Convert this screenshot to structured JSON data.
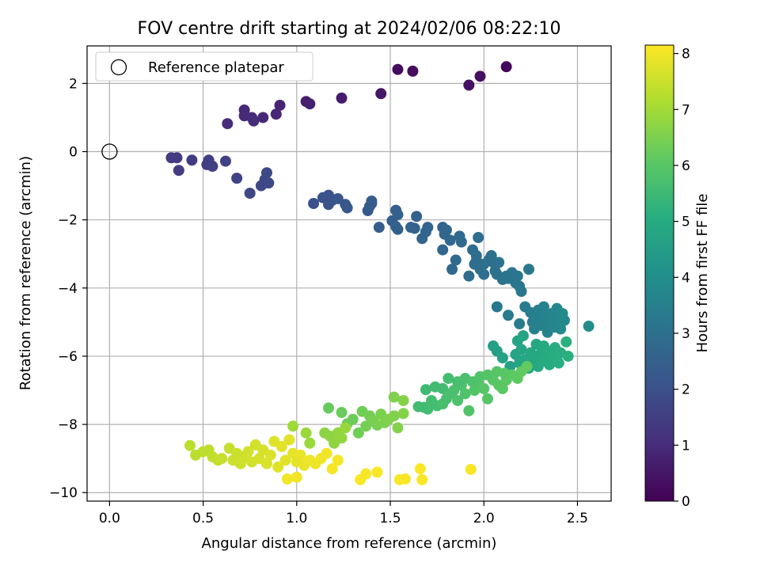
{
  "chart_data": {
    "type": "scatter",
    "title": "FOV centre drift starting at 2024/02/06 08:22:10",
    "xlabel": "Angular distance from reference (arcmin)",
    "ylabel": "Rotation from reference (arcmin)",
    "xlim": [
      -0.12,
      2.68
    ],
    "ylim": [
      -10.25,
      3.1
    ],
    "xticks": [
      0.0,
      0.5,
      1.0,
      1.5,
      2.0,
      2.5
    ],
    "xtick_labels": [
      "0.0",
      "0.5",
      "1.0",
      "1.5",
      "2.0",
      "2.5"
    ],
    "yticks": [
      2,
      0,
      -2,
      -4,
      -6,
      -8,
      -10
    ],
    "ytick_labels": [
      "2",
      "0",
      "−2",
      "−4",
      "−6",
      "−8",
      "−10"
    ],
    "grid": true,
    "legend": {
      "position": "top-left",
      "label": "Reference platepar"
    },
    "reference_point": {
      "x": 0.0,
      "y": 0.0
    },
    "colorbar": {
      "label": "Hours from first FF file",
      "min": 0,
      "max": 8.15,
      "ticks": [
        0,
        1,
        2,
        3,
        4,
        5,
        6,
        7,
        8
      ],
      "tick_labels": [
        "0",
        "1",
        "2",
        "3",
        "4",
        "5",
        "6",
        "7",
        "8"
      ],
      "colormap": "viridis"
    },
    "points": [
      [
        1.54,
        2.41,
        0.25
      ],
      [
        1.62,
        2.36,
        0.3
      ],
      [
        2.12,
        2.49,
        0.15
      ],
      [
        1.98,
        2.21,
        0.35
      ],
      [
        1.92,
        1.95,
        0.4
      ],
      [
        1.45,
        1.7,
        0.5
      ],
      [
        1.24,
        1.57,
        0.6
      ],
      [
        1.05,
        1.47,
        0.7
      ],
      [
        1.07,
        1.4,
        0.75
      ],
      [
        0.91,
        1.36,
        0.8
      ],
      [
        0.89,
        1.1,
        0.85
      ],
      [
        0.82,
        1.0,
        0.9
      ],
      [
        0.72,
        1.22,
        0.9
      ],
      [
        0.72,
        1.05,
        0.95
      ],
      [
        0.76,
        1.0,
        1.0
      ],
      [
        0.77,
        0.9,
        1.0
      ],
      [
        0.63,
        0.82,
        1.05
      ],
      [
        0.33,
        -0.18,
        1.4
      ],
      [
        0.36,
        -0.18,
        1.4
      ],
      [
        0.37,
        -0.55,
        1.45
      ],
      [
        0.44,
        -0.25,
        1.45
      ],
      [
        0.52,
        -0.38,
        1.5
      ],
      [
        0.53,
        -0.25,
        1.5
      ],
      [
        0.55,
        -0.43,
        1.55
      ],
      [
        0.62,
        -0.28,
        1.6
      ],
      [
        0.68,
        -0.78,
        1.65
      ],
      [
        0.75,
        -1.22,
        1.7
      ],
      [
        0.81,
        -1.0,
        1.75
      ],
      [
        0.83,
        -0.82,
        1.75
      ],
      [
        0.84,
        -0.62,
        1.8
      ],
      [
        0.85,
        -0.92,
        1.8
      ],
      [
        1.09,
        -1.52,
        2.0
      ],
      [
        1.14,
        -1.35,
        2.05
      ],
      [
        1.17,
        -1.28,
        2.05
      ],
      [
        1.17,
        -1.55,
        2.1
      ],
      [
        1.19,
        -1.43,
        2.1
      ],
      [
        1.22,
        -1.38,
        2.15
      ],
      [
        1.26,
        -1.55,
        2.2
      ],
      [
        1.27,
        -1.65,
        2.2
      ],
      [
        1.38,
        -1.73,
        2.3
      ],
      [
        1.39,
        -1.6,
        2.3
      ],
      [
        1.4,
        -1.52,
        2.35
      ],
      [
        1.4,
        -1.45,
        2.35
      ],
      [
        1.44,
        -2.22,
        2.4
      ],
      [
        1.51,
        -2.03,
        2.45
      ],
      [
        1.53,
        -1.72,
        2.45
      ],
      [
        1.54,
        -1.85,
        2.5
      ],
      [
        1.53,
        -2.2,
        2.5
      ],
      [
        1.54,
        -2.28,
        2.5
      ],
      [
        1.61,
        -2.22,
        2.55
      ],
      [
        1.63,
        -2.25,
        2.55
      ],
      [
        1.64,
        -1.9,
        2.55
      ],
      [
        1.67,
        -2.55,
        2.6
      ],
      [
        1.69,
        -2.35,
        2.6
      ],
      [
        1.7,
        -2.22,
        2.6
      ],
      [
        1.78,
        -2.22,
        2.65
      ],
      [
        1.78,
        -2.88,
        2.7
      ],
      [
        1.79,
        -2.42,
        2.7
      ],
      [
        1.8,
        -2.3,
        2.7
      ],
      [
        1.82,
        -2.6,
        2.75
      ],
      [
        1.83,
        -3.45,
        2.75
      ],
      [
        1.85,
        -3.18,
        2.8
      ],
      [
        1.87,
        -2.48,
        2.8
      ],
      [
        1.88,
        -2.65,
        2.8
      ],
      [
        1.92,
        -3.65,
        2.85
      ],
      [
        1.94,
        -2.88,
        2.85
      ],
      [
        1.95,
        -3.3,
        2.9
      ],
      [
        1.96,
        -3.05,
        2.9
      ],
      [
        1.96,
        -3.2,
        2.9
      ],
      [
        1.97,
        -2.52,
        2.9
      ],
      [
        1.98,
        -3.45,
        2.95
      ],
      [
        2.0,
        -3.3,
        2.95
      ],
      [
        2.0,
        -3.6,
        2.95
      ],
      [
        2.03,
        -3.15,
        3.0
      ],
      [
        2.04,
        -3.05,
        3.0
      ],
      [
        2.05,
        -3.25,
        3.0
      ],
      [
        2.06,
        -3.5,
        3.05
      ],
      [
        2.07,
        -3.6,
        3.05
      ],
      [
        2.08,
        -3.25,
        3.05
      ],
      [
        2.1,
        -3.75,
        3.1
      ],
      [
        2.12,
        -3.65,
        3.1
      ],
      [
        2.13,
        -3.72,
        3.15
      ],
      [
        2.15,
        -3.55,
        3.15
      ],
      [
        2.17,
        -3.85,
        3.15
      ],
      [
        2.18,
        -3.65,
        3.2
      ],
      [
        2.19,
        -3.95,
        3.2
      ],
      [
        2.2,
        -4.1,
        3.25
      ],
      [
        2.24,
        -3.45,
        3.25
      ],
      [
        2.07,
        -4.55,
        3.3
      ],
      [
        2.13,
        -4.8,
        3.35
      ],
      [
        2.19,
        -5.05,
        3.4
      ],
      [
        2.22,
        -4.55,
        3.4
      ],
      [
        2.25,
        -4.72,
        3.45
      ],
      [
        2.26,
        -5.0,
        3.45
      ],
      [
        2.27,
        -5.2,
        3.5
      ],
      [
        2.28,
        -4.8,
        3.5
      ],
      [
        2.29,
        -4.65,
        3.5
      ],
      [
        2.3,
        -4.95,
        3.55
      ],
      [
        2.31,
        -5.1,
        3.55
      ],
      [
        2.32,
        -4.55,
        3.55
      ],
      [
        2.33,
        -4.85,
        3.6
      ],
      [
        2.34,
        -5.3,
        3.6
      ],
      [
        2.35,
        -5.05,
        3.65
      ],
      [
        2.36,
        -4.75,
        3.65
      ],
      [
        2.37,
        -4.95,
        3.7
      ],
      [
        2.38,
        -5.15,
        3.7
      ],
      [
        2.39,
        -4.6,
        3.75
      ],
      [
        2.4,
        -4.9,
        3.75
      ],
      [
        2.41,
        -5.2,
        3.8
      ],
      [
        2.42,
        -4.75,
        3.8
      ],
      [
        2.43,
        -4.95,
        3.85
      ],
      [
        2.56,
        -5.12,
        3.95
      ],
      [
        2.05,
        -5.7,
        4.6
      ],
      [
        2.07,
        -5.85,
        4.6
      ],
      [
        2.1,
        -6.05,
        4.65
      ],
      [
        2.14,
        -6.3,
        4.65
      ],
      [
        2.17,
        -5.95,
        4.7
      ],
      [
        2.18,
        -5.55,
        4.7
      ],
      [
        2.19,
        -6.2,
        4.75
      ],
      [
        2.2,
        -5.8,
        4.75
      ],
      [
        2.21,
        -5.4,
        4.75
      ],
      [
        2.22,
        -6.1,
        4.8
      ],
      [
        2.24,
        -6.35,
        4.8
      ],
      [
        2.25,
        -5.9,
        4.8
      ],
      [
        2.27,
        -6.1,
        4.85
      ],
      [
        2.28,
        -5.65,
        4.85
      ],
      [
        2.29,
        -6.3,
        4.9
      ],
      [
        2.3,
        -5.95,
        4.9
      ],
      [
        2.31,
        -6.15,
        4.95
      ],
      [
        2.32,
        -5.7,
        4.95
      ],
      [
        2.33,
        -6.05,
        5.0
      ],
      [
        2.34,
        -5.85,
        5.0
      ],
      [
        2.35,
        -6.25,
        5.0
      ],
      [
        2.37,
        -6.0,
        5.05
      ],
      [
        2.38,
        -5.75,
        5.05
      ],
      [
        2.4,
        -6.2,
        5.1
      ],
      [
        2.41,
        -5.9,
        5.1
      ],
      [
        2.44,
        -5.58,
        5.15
      ],
      [
        2.45,
        -6.0,
        5.15
      ],
      [
        1.65,
        -7.48,
        5.6
      ],
      [
        1.68,
        -7.5,
        5.6
      ],
      [
        1.7,
        -7.55,
        5.6
      ],
      [
        1.72,
        -7.3,
        5.65
      ],
      [
        1.75,
        -7.45,
        5.65
      ],
      [
        1.78,
        -7.4,
        5.7
      ],
      [
        1.8,
        -7.25,
        5.7
      ],
      [
        1.82,
        -7.1,
        5.75
      ],
      [
        1.84,
        -7.0,
        5.75
      ],
      [
        1.86,
        -7.3,
        5.8
      ],
      [
        1.88,
        -6.85,
        5.8
      ],
      [
        1.9,
        -7.1,
        5.85
      ],
      [
        1.92,
        -7.6,
        5.85
      ],
      [
        1.95,
        -7.0,
        5.9
      ],
      [
        1.97,
        -6.8,
        5.9
      ],
      [
        2.0,
        -6.95,
        5.95
      ],
      [
        2.02,
        -7.25,
        5.95
      ],
      [
        2.05,
        -6.7,
        6.0
      ],
      [
        2.08,
        -6.85,
        6.0
      ],
      [
        2.1,
        -6.95,
        6.05
      ],
      [
        2.12,
        -6.7,
        6.05
      ],
      [
        2.15,
        -6.55,
        6.1
      ],
      [
        2.18,
        -6.65,
        6.1
      ],
      [
        2.2,
        -6.45,
        6.15
      ],
      [
        2.23,
        -6.3,
        6.15
      ],
      [
        1.69,
        -6.98,
        5.55
      ],
      [
        1.74,
        -6.9,
        5.6
      ],
      [
        1.78,
        -6.95,
        5.6
      ],
      [
        1.81,
        -6.65,
        5.65
      ],
      [
        1.86,
        -6.75,
        5.7
      ],
      [
        1.9,
        -6.65,
        5.75
      ],
      [
        1.94,
        -6.75,
        5.8
      ],
      [
        1.98,
        -6.6,
        5.85
      ],
      [
        2.02,
        -6.55,
        5.9
      ],
      [
        2.07,
        -6.45,
        5.95
      ],
      [
        2.11,
        -6.5,
        6.0
      ],
      [
        1.17,
        -7.52,
        6.2
      ],
      [
        1.24,
        -7.65,
        6.25
      ],
      [
        1.27,
        -7.98,
        6.3
      ],
      [
        1.3,
        -7.85,
        6.3
      ],
      [
        1.33,
        -8.25,
        6.35
      ],
      [
        1.35,
        -7.62,
        6.35
      ],
      [
        1.37,
        -8.05,
        6.4
      ],
      [
        1.39,
        -7.75,
        6.4
      ],
      [
        1.41,
        -7.9,
        6.45
      ],
      [
        1.43,
        -8.02,
        6.45
      ],
      [
        1.45,
        -7.7,
        6.5
      ],
      [
        1.47,
        -7.95,
        6.5
      ],
      [
        1.49,
        -7.85,
        6.55
      ],
      [
        1.52,
        -7.75,
        6.55
      ],
      [
        1.54,
        -8.1,
        6.6
      ],
      [
        1.57,
        -7.68,
        6.6
      ],
      [
        1.52,
        -7.2,
        6.55
      ],
      [
        1.57,
        -7.3,
        6.6
      ],
      [
        1.15,
        -8.25,
        6.7
      ],
      [
        1.18,
        -8.35,
        6.75
      ],
      [
        1.2,
        -8.55,
        6.75
      ],
      [
        1.22,
        -8.25,
        6.8
      ],
      [
        1.24,
        -8.4,
        6.8
      ],
      [
        1.26,
        -8.1,
        6.85
      ],
      [
        1.05,
        -8.25,
        6.9
      ],
      [
        1.07,
        -8.55,
        6.9
      ],
      [
        0.98,
        -8.05,
        6.95
      ],
      [
        0.43,
        -8.62,
        7.3
      ],
      [
        0.46,
        -8.9,
        7.3
      ],
      [
        0.5,
        -8.8,
        7.35
      ],
      [
        0.53,
        -8.75,
        7.35
      ],
      [
        0.55,
        -8.95,
        7.4
      ],
      [
        0.58,
        -9.05,
        7.4
      ],
      [
        0.6,
        -9.0,
        7.45
      ],
      [
        0.64,
        -8.7,
        7.45
      ],
      [
        0.66,
        -9.05,
        7.5
      ],
      [
        0.68,
        -8.85,
        7.5
      ],
      [
        0.7,
        -9.15,
        7.55
      ],
      [
        0.72,
        -8.95,
        7.55
      ],
      [
        0.74,
        -8.8,
        7.6
      ],
      [
        0.76,
        -9.1,
        7.6
      ],
      [
        0.78,
        -8.6,
        7.6
      ],
      [
        0.8,
        -9.0,
        7.65
      ],
      [
        0.82,
        -8.75,
        7.65
      ],
      [
        0.84,
        -9.15,
        7.7
      ],
      [
        0.86,
        -8.9,
        7.7
      ],
      [
        0.88,
        -8.5,
        7.75
      ],
      [
        0.9,
        -9.25,
        7.75
      ],
      [
        0.92,
        -8.65,
        7.8
      ],
      [
        0.94,
        -9.05,
        7.8
      ],
      [
        0.96,
        -8.45,
        7.8
      ],
      [
        0.98,
        -8.85,
        7.85
      ],
      [
        1.0,
        -9.1,
        7.85
      ],
      [
        1.02,
        -8.9,
        7.9
      ],
      [
        1.04,
        -9.2,
        7.9
      ],
      [
        1.07,
        -9.05,
        7.95
      ],
      [
        1.1,
        -9.15,
        7.95
      ],
      [
        1.13,
        -9.0,
        8.0
      ],
      [
        1.16,
        -8.85,
        8.0
      ],
      [
        1.19,
        -9.3,
        8.05
      ],
      [
        1.22,
        -9.05,
        8.05
      ],
      [
        0.95,
        -9.6,
        8.0
      ],
      [
        1.0,
        -9.55,
        8.0
      ],
      [
        1.34,
        -9.62,
        8.1
      ],
      [
        1.37,
        -9.45,
        8.1
      ],
      [
        1.43,
        -9.4,
        8.1
      ],
      [
        1.55,
        -9.62,
        8.1
      ],
      [
        1.58,
        -9.6,
        8.1
      ],
      [
        1.66,
        -9.3,
        8.1
      ],
      [
        1.67,
        -9.62,
        8.1
      ],
      [
        1.93,
        -9.32,
        8.1
      ]
    ]
  }
}
